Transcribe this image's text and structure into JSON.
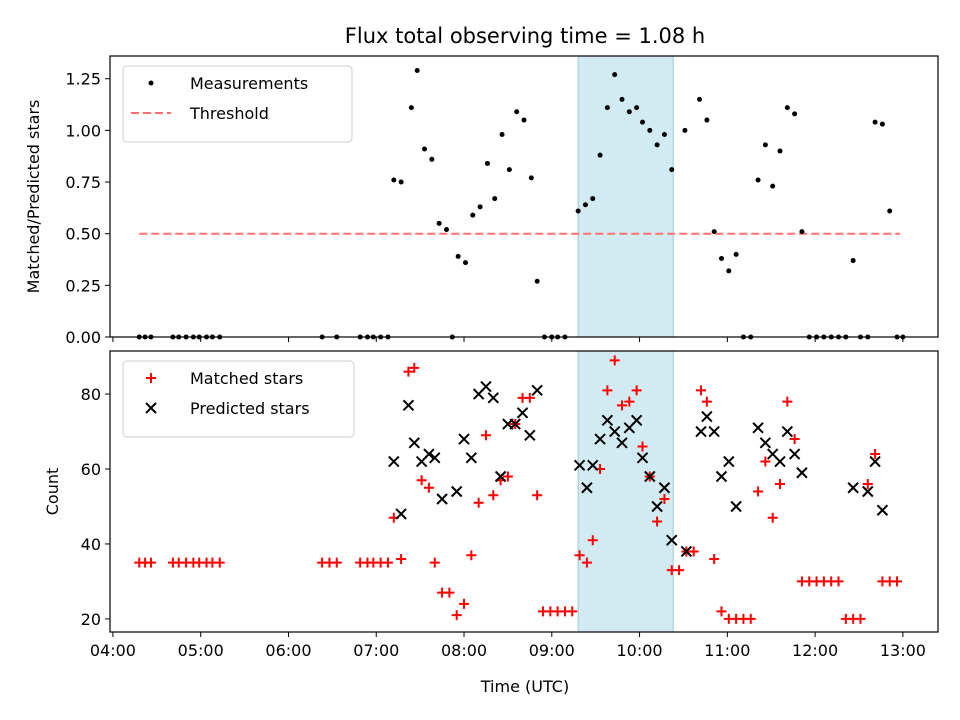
{
  "figure": {
    "title": "Flux total observing time = 1.08 h",
    "xlabel": "Time (UTC)",
    "x_ticks": [
      "04:00",
      "05:00",
      "06:00",
      "07:00",
      "08:00",
      "09:00",
      "10:00",
      "11:00",
      "12:00",
      "13:00"
    ],
    "highlight_color": "#add8e6"
  },
  "chart_data": [
    {
      "type": "scatter",
      "ylabel": "Matched/Predicted stars",
      "xlim": [
        "03:58",
        "13:24"
      ],
      "ylim": [
        0,
        1.36
      ],
      "y_ticks": [
        "0.00",
        "0.25",
        "0.50",
        "0.75",
        "1.00",
        "1.25"
      ],
      "grid": false,
      "legend_placement": "top-left",
      "highlight_span": [
        "09:18",
        "10:23"
      ],
      "threshold": {
        "name": "Threshold",
        "y": 0.5,
        "x_range": [
          "04:18",
          "12:58"
        ],
        "color": "#ff6f6f"
      },
      "series": [
        {
          "name": "Measurements",
          "color": "#000000",
          "marker": "dot",
          "points": [
            [
              "04:18",
              0
            ],
            [
              "04:22",
              0
            ],
            [
              "04:26",
              0
            ],
            [
              "04:41",
              0
            ],
            [
              "04:45",
              0
            ],
            [
              "04:50",
              0
            ],
            [
              "04:55",
              0
            ],
            [
              "04:59",
              0
            ],
            [
              "05:04",
              0
            ],
            [
              "05:08",
              0
            ],
            [
              "05:13",
              0
            ],
            [
              "06:23",
              0
            ],
            [
              "06:33",
              0
            ],
            [
              "06:49",
              0
            ],
            [
              "06:54",
              0
            ],
            [
              "06:58",
              0
            ],
            [
              "07:03",
              0
            ],
            [
              "07:08",
              0
            ],
            [
              "07:12",
              0.76
            ],
            [
              "07:17",
              0.75
            ],
            [
              "07:24",
              1.11
            ],
            [
              "07:28",
              1.29
            ],
            [
              "07:33",
              0.91
            ],
            [
              "07:38",
              0.86
            ],
            [
              "07:43",
              0.55
            ],
            [
              "07:48",
              0.52
            ],
            [
              "07:52",
              0
            ],
            [
              "07:56",
              0.39
            ],
            [
              "08:01",
              0.36
            ],
            [
              "08:06",
              0.59
            ],
            [
              "08:11",
              0.63
            ],
            [
              "08:16",
              0.84
            ],
            [
              "08:21",
              0.67
            ],
            [
              "08:26",
              0.98
            ],
            [
              "08:31",
              0.81
            ],
            [
              "08:36",
              1.09
            ],
            [
              "08:41",
              1.05
            ],
            [
              "08:46",
              0.77
            ],
            [
              "08:50",
              0.27
            ],
            [
              "08:55",
              0
            ],
            [
              "09:00",
              0
            ],
            [
              "09:04",
              0
            ],
            [
              "09:09",
              0
            ],
            [
              "09:18",
              0.61
            ],
            [
              "09:23",
              0.64
            ],
            [
              "09:28",
              0.67
            ],
            [
              "09:33",
              0.88
            ],
            [
              "09:38",
              1.11
            ],
            [
              "09:43",
              1.27
            ],
            [
              "09:48",
              1.15
            ],
            [
              "09:53",
              1.09
            ],
            [
              "09:58",
              1.11
            ],
            [
              "10:02",
              1.04
            ],
            [
              "10:07",
              1.0
            ],
            [
              "10:12",
              0.93
            ],
            [
              "10:17",
              0.98
            ],
            [
              "10:22",
              0.81
            ],
            [
              "10:31",
              1.0
            ],
            [
              "10:41",
              1.15
            ],
            [
              "10:46",
              1.05
            ],
            [
              "10:51",
              0.51
            ],
            [
              "10:56",
              0.38
            ],
            [
              "11:01",
              0.32
            ],
            [
              "11:06",
              0.4
            ],
            [
              "11:11",
              0
            ],
            [
              "11:16",
              0
            ],
            [
              "11:21",
              0.76
            ],
            [
              "11:26",
              0.93
            ],
            [
              "11:31",
              0.73
            ],
            [
              "11:36",
              0.9
            ],
            [
              "11:41",
              1.11
            ],
            [
              "11:46",
              1.08
            ],
            [
              "11:51",
              0.51
            ],
            [
              "11:56",
              0
            ],
            [
              "12:01",
              0
            ],
            [
              "12:06",
              0
            ],
            [
              "12:11",
              0
            ],
            [
              "12:16",
              0
            ],
            [
              "12:21",
              0
            ],
            [
              "12:26",
              0.37
            ],
            [
              "12:31",
              0
            ],
            [
              "12:36",
              0
            ],
            [
              "12:41",
              1.04
            ],
            [
              "12:46",
              1.03
            ],
            [
              "12:51",
              0.61
            ],
            [
              "12:56",
              0
            ],
            [
              "13:00",
              0
            ]
          ]
        }
      ]
    },
    {
      "type": "scatter",
      "ylabel": "Count",
      "xlim": [
        "03:58",
        "13:24"
      ],
      "ylim": [
        16.5,
        91.5
      ],
      "y_ticks": [
        "20",
        "40",
        "60",
        "80"
      ],
      "grid": false,
      "legend_placement": "top-left",
      "highlight_span": [
        "09:18",
        "10:23"
      ],
      "series": [
        {
          "name": "Matched stars",
          "color": "#ff0000",
          "marker": "plus",
          "points": [
            [
              "04:18",
              35
            ],
            [
              "04:22",
              35
            ],
            [
              "04:26",
              35
            ],
            [
              "04:41",
              35
            ],
            [
              "04:45",
              35
            ],
            [
              "04:50",
              35
            ],
            [
              "04:55",
              35
            ],
            [
              "04:59",
              35
            ],
            [
              "05:04",
              35
            ],
            [
              "05:08",
              35
            ],
            [
              "05:13",
              35
            ],
            [
              "06:23",
              35
            ],
            [
              "06:28",
              35
            ],
            [
              "06:33",
              35
            ],
            [
              "06:49",
              35
            ],
            [
              "06:54",
              35
            ],
            [
              "06:58",
              35
            ],
            [
              "07:03",
              35
            ],
            [
              "07:08",
              35
            ],
            [
              "07:12",
              47
            ],
            [
              "07:17",
              36
            ],
            [
              "07:22",
              86
            ],
            [
              "07:26",
              87
            ],
            [
              "07:31",
              57
            ],
            [
              "07:36",
              55
            ],
            [
              "07:40",
              35
            ],
            [
              "07:45",
              27
            ],
            [
              "07:50",
              27
            ],
            [
              "07:55",
              21
            ],
            [
              "08:00",
              24
            ],
            [
              "08:05",
              37
            ],
            [
              "08:10",
              51
            ],
            [
              "08:15",
              69
            ],
            [
              "08:20",
              53
            ],
            [
              "08:25",
              57
            ],
            [
              "08:30",
              58
            ],
            [
              "08:35",
              72
            ],
            [
              "08:40",
              79
            ],
            [
              "08:45",
              79
            ],
            [
              "08:50",
              53
            ],
            [
              "08:54",
              22
            ],
            [
              "08:59",
              22
            ],
            [
              "09:04",
              22
            ],
            [
              "09:09",
              22
            ],
            [
              "09:14",
              22
            ],
            [
              "09:19",
              37
            ],
            [
              "09:24",
              35
            ],
            [
              "09:28",
              41
            ],
            [
              "09:33",
              60
            ],
            [
              "09:38",
              81
            ],
            [
              "09:43",
              89
            ],
            [
              "09:48",
              77
            ],
            [
              "09:53",
              78
            ],
            [
              "09:58",
              81
            ],
            [
              "10:02",
              66
            ],
            [
              "10:07",
              58
            ],
            [
              "10:12",
              46
            ],
            [
              "10:17",
              52
            ],
            [
              "10:22",
              33
            ],
            [
              "10:27",
              33
            ],
            [
              "10:32",
              38
            ],
            [
              "10:37",
              38
            ],
            [
              "10:42",
              81
            ],
            [
              "10:46",
              78
            ],
            [
              "10:51",
              36
            ],
            [
              "10:56",
              22
            ],
            [
              "11:01",
              20
            ],
            [
              "11:06",
              20
            ],
            [
              "11:11",
              20
            ],
            [
              "11:16",
              20
            ],
            [
              "11:21",
              54
            ],
            [
              "11:26",
              62
            ],
            [
              "11:31",
              47
            ],
            [
              "11:36",
              56
            ],
            [
              "11:41",
              78
            ],
            [
              "11:46",
              68
            ],
            [
              "11:51",
              30
            ],
            [
              "11:56",
              30
            ],
            [
              "12:01",
              30
            ],
            [
              "12:06",
              30
            ],
            [
              "12:11",
              30
            ],
            [
              "12:16",
              30
            ],
            [
              "12:21",
              20
            ],
            [
              "12:26",
              20
            ],
            [
              "12:31",
              20
            ],
            [
              "12:36",
              56
            ],
            [
              "12:41",
              64
            ],
            [
              "12:46",
              30
            ],
            [
              "12:51",
              30
            ],
            [
              "12:56",
              30
            ]
          ]
        },
        {
          "name": "Predicted stars",
          "color": "#000000",
          "marker": "x",
          "points": [
            [
              "07:12",
              62
            ],
            [
              "07:17",
              48
            ],
            [
              "07:22",
              77
            ],
            [
              "07:26",
              67
            ],
            [
              "07:31",
              62
            ],
            [
              "07:36",
              64
            ],
            [
              "07:40",
              63
            ],
            [
              "07:45",
              52
            ],
            [
              "07:55",
              54
            ],
            [
              "08:00",
              68
            ],
            [
              "08:05",
              63
            ],
            [
              "08:10",
              80
            ],
            [
              "08:15",
              82
            ],
            [
              "08:20",
              79
            ],
            [
              "08:25",
              58
            ],
            [
              "08:30",
              72
            ],
            [
              "08:35",
              72
            ],
            [
              "08:40",
              75
            ],
            [
              "08:45",
              69
            ],
            [
              "08:50",
              81
            ],
            [
              "09:19",
              61
            ],
            [
              "09:24",
              55
            ],
            [
              "09:28",
              61
            ],
            [
              "09:33",
              68
            ],
            [
              "09:38",
              73
            ],
            [
              "09:43",
              70
            ],
            [
              "09:48",
              67
            ],
            [
              "09:53",
              71
            ],
            [
              "09:58",
              73
            ],
            [
              "10:02",
              63
            ],
            [
              "10:07",
              58
            ],
            [
              "10:12",
              50
            ],
            [
              "10:17",
              55
            ],
            [
              "10:22",
              41
            ],
            [
              "10:32",
              38
            ],
            [
              "10:42",
              70
            ],
            [
              "10:46",
              74
            ],
            [
              "10:51",
              70
            ],
            [
              "10:56",
              58
            ],
            [
              "11:01",
              62
            ],
            [
              "11:06",
              50
            ],
            [
              "11:21",
              71
            ],
            [
              "11:26",
              67
            ],
            [
              "11:31",
              64
            ],
            [
              "11:36",
              62
            ],
            [
              "11:41",
              70
            ],
            [
              "11:46",
              64
            ],
            [
              "11:51",
              59
            ],
            [
              "12:26",
              55
            ],
            [
              "12:36",
              54
            ],
            [
              "12:41",
              62
            ],
            [
              "12:46",
              49
            ]
          ]
        }
      ]
    }
  ]
}
